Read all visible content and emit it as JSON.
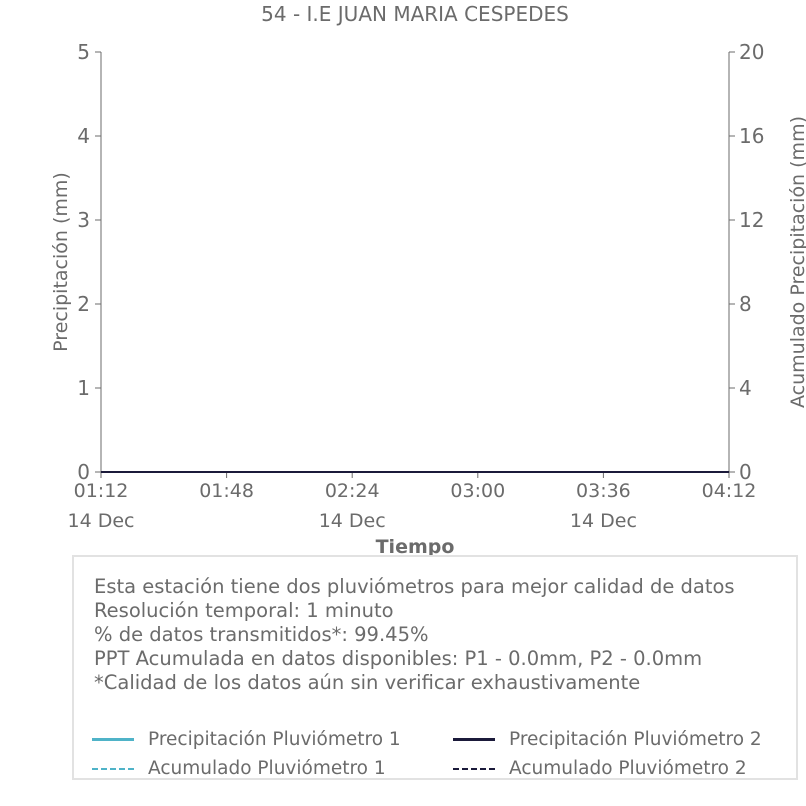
{
  "chart_data": {
    "type": "line",
    "title": "54 - I.E JUAN MARIA CESPEDES",
    "xlabel": "Tiempo",
    "ylabel": "Precipitación (mm)",
    "y2label": "Acumulado Precipitación (mm)",
    "ylim": [
      0,
      5
    ],
    "y2lim": [
      0,
      20
    ],
    "yticks": [
      "0",
      "1",
      "2",
      "3",
      "4",
      "5"
    ],
    "y2ticks": [
      "0",
      "4",
      "8",
      "12",
      "16",
      "20"
    ],
    "xticks": [
      {
        "time": "01:12",
        "date": "14 Dec"
      },
      {
        "time": "01:48",
        "date": ""
      },
      {
        "time": "02:24",
        "date": "14 Dec"
      },
      {
        "time": "03:00",
        "date": ""
      },
      {
        "time": "03:36",
        "date": "14 Dec"
      },
      {
        "time": "04:12",
        "date": ""
      }
    ],
    "x_range": [
      "01:12",
      "04:12"
    ],
    "grid": false,
    "series": [
      {
        "name": "Precipitación Pluviómetro 1",
        "axis": "left",
        "style": "solid",
        "color": "#4fb3c8",
        "x": [
          "01:12",
          "04:12"
        ],
        "values": [
          0,
          0
        ]
      },
      {
        "name": "Precipitación Pluviómetro 2",
        "axis": "left",
        "style": "solid",
        "color": "#1b1a3a",
        "x": [
          "01:12",
          "04:12"
        ],
        "values": [
          0,
          0
        ]
      },
      {
        "name": "Acumulado Pluviómetro 1",
        "axis": "right",
        "style": "dashed",
        "color": "#4fb3c8",
        "x": [
          "01:12",
          "04:12"
        ],
        "values": [
          0,
          0
        ]
      },
      {
        "name": "Acumulado Pluviómetro 2",
        "axis": "right",
        "style": "dashed",
        "color": "#1b1a3a",
        "x": [
          "01:12",
          "04:12"
        ],
        "values": [
          0,
          0
        ]
      }
    ]
  },
  "info": {
    "line1": "Esta estación tiene dos pluviómetros para mejor calidad de datos",
    "line2": "Resolución temporal: 1 minuto",
    "line3": "% de datos transmitidos*: 99.45%",
    "line4": "PPT Acumulada en datos disponibles: P1 - 0.0mm, P2 - 0.0mm",
    "line5": "*Calidad de los datos aún sin verificar exhaustivamente"
  },
  "legend": [
    {
      "label": "Precipitación Pluviómetro 1",
      "color": "#4fb3c8",
      "style": "solid"
    },
    {
      "label": "Precipitación Pluviómetro 2",
      "color": "#1b1a3a",
      "style": "solid"
    },
    {
      "label": "Acumulado Pluviómetro 1",
      "color": "#4fb3c8",
      "style": "dashed"
    },
    {
      "label": "Acumulado Pluviómetro 2",
      "color": "#1b1a3a",
      "style": "dashed"
    }
  ]
}
